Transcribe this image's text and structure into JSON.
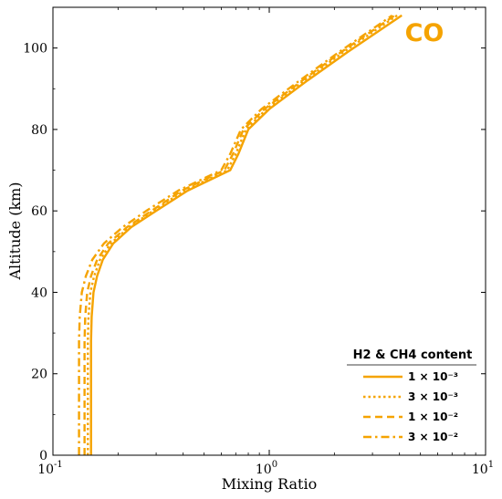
{
  "chart_data": {
    "type": "line",
    "annotation": "CO",
    "xlabel": "Mixing Ratio",
    "ylabel": "Altitude (km)",
    "xscale": "log",
    "xlim": [
      0.1,
      10
    ],
    "ylim": [
      0,
      110
    ],
    "x_ticks": [
      {
        "value": 0.1,
        "base": "10",
        "exp": "-1"
      },
      {
        "value": 1,
        "base": "10",
        "exp": "0"
      },
      {
        "value": 10,
        "base": "10",
        "exp": "1"
      }
    ],
    "y_ticks": [
      0,
      20,
      40,
      60,
      80,
      100
    ],
    "grid": false,
    "legend_title": "H2 & CH4 content",
    "legend_position": "bottom-right",
    "color": "#f5a300",
    "series": [
      {
        "name": "1 × 10⁻³",
        "style": "solid",
        "points": [
          [
            0.15,
            0
          ],
          [
            0.15,
            20
          ],
          [
            0.15,
            28
          ],
          [
            0.151,
            34
          ],
          [
            0.154,
            40
          ],
          [
            0.16,
            44
          ],
          [
            0.17,
            48
          ],
          [
            0.19,
            52
          ],
          [
            0.23,
            56
          ],
          [
            0.3,
            60
          ],
          [
            0.42,
            65
          ],
          [
            0.66,
            70
          ],
          [
            0.72,
            74
          ],
          [
            0.8,
            80
          ],
          [
            1.0,
            85
          ],
          [
            1.5,
            92
          ],
          [
            2.3,
            99
          ],
          [
            4.1,
            108
          ]
        ]
      },
      {
        "name": "3 × 10⁻³",
        "style": "dotted",
        "points": [
          [
            0.145,
            0
          ],
          [
            0.145,
            20
          ],
          [
            0.145,
            28
          ],
          [
            0.146,
            34
          ],
          [
            0.149,
            40
          ],
          [
            0.155,
            44
          ],
          [
            0.165,
            48
          ],
          [
            0.185,
            52
          ],
          [
            0.225,
            56
          ],
          [
            0.29,
            60
          ],
          [
            0.405,
            65
          ],
          [
            0.64,
            70
          ],
          [
            0.7,
            74
          ],
          [
            0.78,
            80
          ],
          [
            0.97,
            85
          ],
          [
            1.45,
            92
          ],
          [
            2.2,
            99
          ],
          [
            3.9,
            108
          ]
        ]
      },
      {
        "name": "1 × 10⁻²",
        "style": "dashed",
        "points": [
          [
            0.14,
            0
          ],
          [
            0.14,
            20
          ],
          [
            0.14,
            28
          ],
          [
            0.141,
            34
          ],
          [
            0.144,
            40
          ],
          [
            0.15,
            44
          ],
          [
            0.16,
            48
          ],
          [
            0.18,
            52
          ],
          [
            0.22,
            56
          ],
          [
            0.285,
            60
          ],
          [
            0.395,
            65
          ],
          [
            0.62,
            70
          ],
          [
            0.68,
            74
          ],
          [
            0.76,
            80
          ],
          [
            0.95,
            85
          ],
          [
            1.42,
            92
          ],
          [
            2.15,
            99
          ],
          [
            3.8,
            108
          ]
        ]
      },
      {
        "name": "3 × 10⁻²",
        "style": "dashdot",
        "points": [
          [
            0.132,
            0
          ],
          [
            0.132,
            20
          ],
          [
            0.132,
            28
          ],
          [
            0.133,
            34
          ],
          [
            0.136,
            40
          ],
          [
            0.142,
            44
          ],
          [
            0.152,
            48
          ],
          [
            0.172,
            52
          ],
          [
            0.21,
            56
          ],
          [
            0.27,
            60
          ],
          [
            0.38,
            65
          ],
          [
            0.6,
            70
          ],
          [
            0.66,
            74
          ],
          [
            0.74,
            80
          ],
          [
            0.92,
            85
          ],
          [
            1.38,
            92
          ],
          [
            2.1,
            99
          ],
          [
            3.7,
            108
          ]
        ]
      }
    ]
  }
}
